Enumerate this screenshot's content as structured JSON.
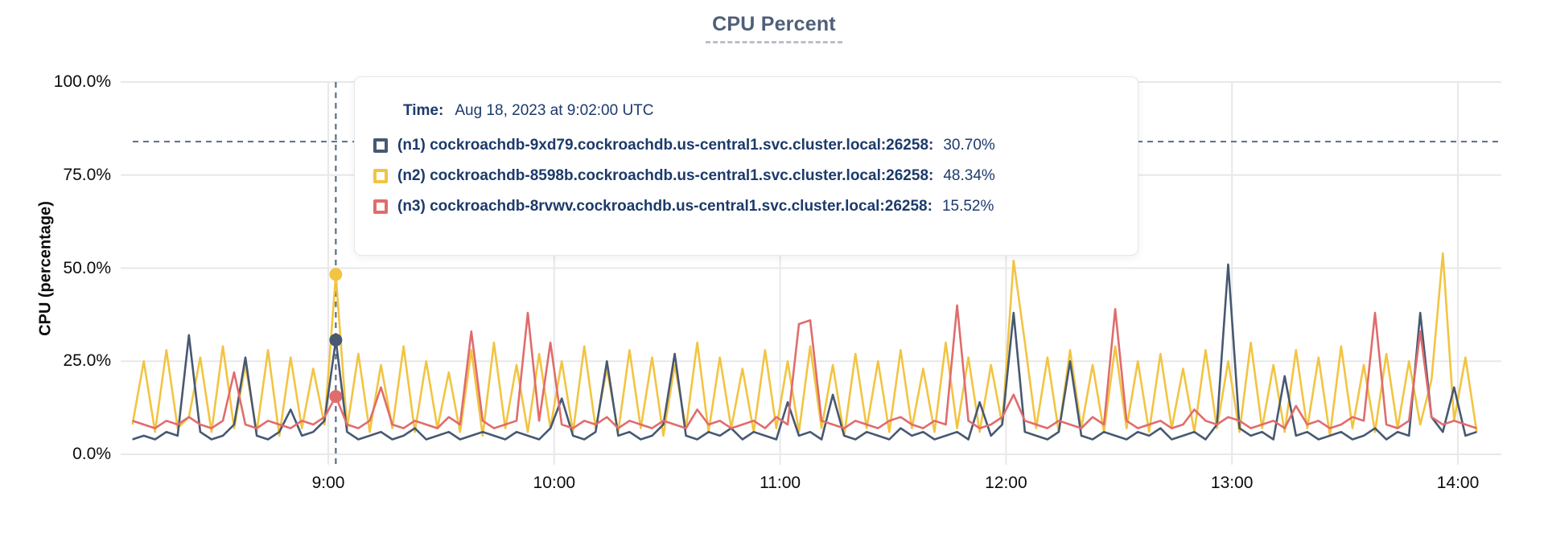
{
  "title": "CPU Percent",
  "tooltip": {
    "time_label": "Time:",
    "time_value": "Aug 18, 2023 at 9:02:00 UTC",
    "rows": [
      {
        "label": "(n1) cockroachdb-9xd79.cockroachdb.us-central1.svc.cluster.local:26258:",
        "value": "30.70%",
        "color": "#475872"
      },
      {
        "label": "(n2) cockroachdb-8598b.cockroachdb.us-central1.svc.cluster.local:26258:",
        "value": "48.34%",
        "color": "#F2C442"
      },
      {
        "label": "(n3) cockroachdb-8rvwv.cockroachdb.us-central1.svc.cluster.local:26258:",
        "value": "15.52%",
        "color": "#E06C6C"
      }
    ]
  },
  "chart_data": {
    "type": "line",
    "title": "CPU Percent",
    "xlabel": "",
    "ylabel": "CPU (percentage)",
    "ylim": [
      0,
      100
    ],
    "grid": true,
    "legend_position": "tooltip",
    "y_tick_labels": [
      "100.0%",
      "75.0%",
      "50.0%",
      "25.0%",
      "0.0%"
    ],
    "y_tick_values": [
      100,
      75,
      50,
      25,
      0
    ],
    "x_tick_labels": [
      "9:00",
      "10:00",
      "11:00",
      "12:00",
      "13:00",
      "14:00"
    ],
    "x_tick_minutes": [
      540,
      600,
      660,
      720,
      780,
      840
    ],
    "x_start_minute": 488,
    "x_step_minutes": 3,
    "grid_color": "#e8e8e8",
    "crosshair": {
      "time_minute": 542,
      "y_percent": 84,
      "color": "#5a6e87"
    },
    "hover_points": [
      {
        "series_index": 0,
        "percent": 30.7,
        "display": "30.70%"
      },
      {
        "series_index": 1,
        "percent": 48.34,
        "display": "48.34%"
      },
      {
        "series_index": 2,
        "percent": 15.52,
        "display": "15.52%"
      }
    ],
    "series": [
      {
        "name": "(n1) cockroachdb-9xd79.cockroachdb.us-central1.svc.cluster.local:26258",
        "color": "#475872",
        "values": [
          4,
          5,
          4,
          6,
          5,
          32,
          6,
          4,
          5,
          8,
          26,
          5,
          4,
          6,
          12,
          5,
          6,
          9,
          30.7,
          6,
          4,
          5,
          6,
          4,
          5,
          7,
          4,
          5,
          6,
          4,
          5,
          6,
          5,
          4,
          6,
          5,
          4,
          7,
          15,
          5,
          4,
          6,
          25,
          5,
          6,
          4,
          5,
          8,
          27,
          5,
          4,
          6,
          5,
          7,
          4,
          6,
          5,
          4,
          14,
          5,
          6,
          4,
          16,
          5,
          4,
          6,
          5,
          4,
          7,
          5,
          6,
          4,
          5,
          6,
          4,
          14,
          5,
          8,
          38,
          6,
          5,
          4,
          6,
          25,
          5,
          4,
          6,
          5,
          4,
          6,
          5,
          7,
          4,
          5,
          6,
          4,
          8,
          51,
          7,
          5,
          6,
          4,
          21,
          5,
          6,
          4,
          5,
          6,
          4,
          5,
          7,
          4,
          6,
          5,
          38,
          10,
          6,
          18,
          5,
          6
        ]
      },
      {
        "name": "(n2) cockroachdb-8598b.cockroachdb.us-central1.svc.cluster.local:26258",
        "color": "#F2C442",
        "values": [
          8,
          25,
          6,
          28,
          7,
          10,
          26,
          6,
          29,
          7,
          24,
          6,
          28,
          5,
          26,
          7,
          23,
          8,
          48.3,
          7,
          27,
          6,
          24,
          7,
          29,
          6,
          25,
          7,
          22,
          6,
          28,
          5,
          30,
          7,
          24,
          6,
          27,
          7,
          25,
          6,
          29,
          7,
          23,
          6,
          28,
          7,
          26,
          5,
          24,
          7,
          30,
          6,
          26,
          7,
          23,
          6,
          28,
          7,
          25,
          6,
          29,
          7,
          24,
          5,
          27,
          7,
          25,
          6,
          28,
          7,
          23,
          6,
          30,
          7,
          26,
          6,
          24,
          8,
          52,
          30,
          7,
          26,
          6,
          28,
          7,
          24,
          6,
          29,
          7,
          25,
          6,
          27,
          7,
          23,
          6,
          28,
          7,
          25,
          6,
          30,
          7,
          24,
          6,
          28,
          7,
          26,
          5,
          29,
          7,
          24,
          6,
          27,
          7,
          25,
          8,
          20,
          54,
          9,
          26,
          6
        ]
      },
      {
        "name": "(n3) cockroachdb-8rvwv.cockroachdb.us-central1.svc.cluster.local:26258",
        "color": "#E06C6C",
        "values": [
          9,
          8,
          7,
          9,
          8,
          10,
          8,
          7,
          9,
          22,
          8,
          7,
          9,
          8,
          7,
          9,
          8,
          10,
          15.5,
          8,
          7,
          9,
          18,
          8,
          7,
          9,
          8,
          7,
          10,
          8,
          33,
          9,
          7,
          8,
          9,
          38,
          9,
          30,
          8,
          7,
          9,
          8,
          10,
          7,
          9,
          8,
          7,
          9,
          8,
          7,
          12,
          8,
          9,
          7,
          8,
          9,
          7,
          10,
          8,
          35,
          36,
          9,
          8,
          7,
          9,
          8,
          7,
          9,
          10,
          8,
          7,
          9,
          8,
          40,
          9,
          7,
          8,
          10,
          16,
          9,
          8,
          7,
          9,
          8,
          7,
          10,
          8,
          39,
          9,
          7,
          8,
          9,
          7,
          8,
          12,
          9,
          8,
          10,
          9,
          7,
          8,
          9,
          7,
          13,
          8,
          9,
          7,
          8,
          10,
          9,
          38,
          8,
          7,
          9,
          33,
          10,
          8,
          9,
          8,
          7
        ]
      }
    ]
  }
}
